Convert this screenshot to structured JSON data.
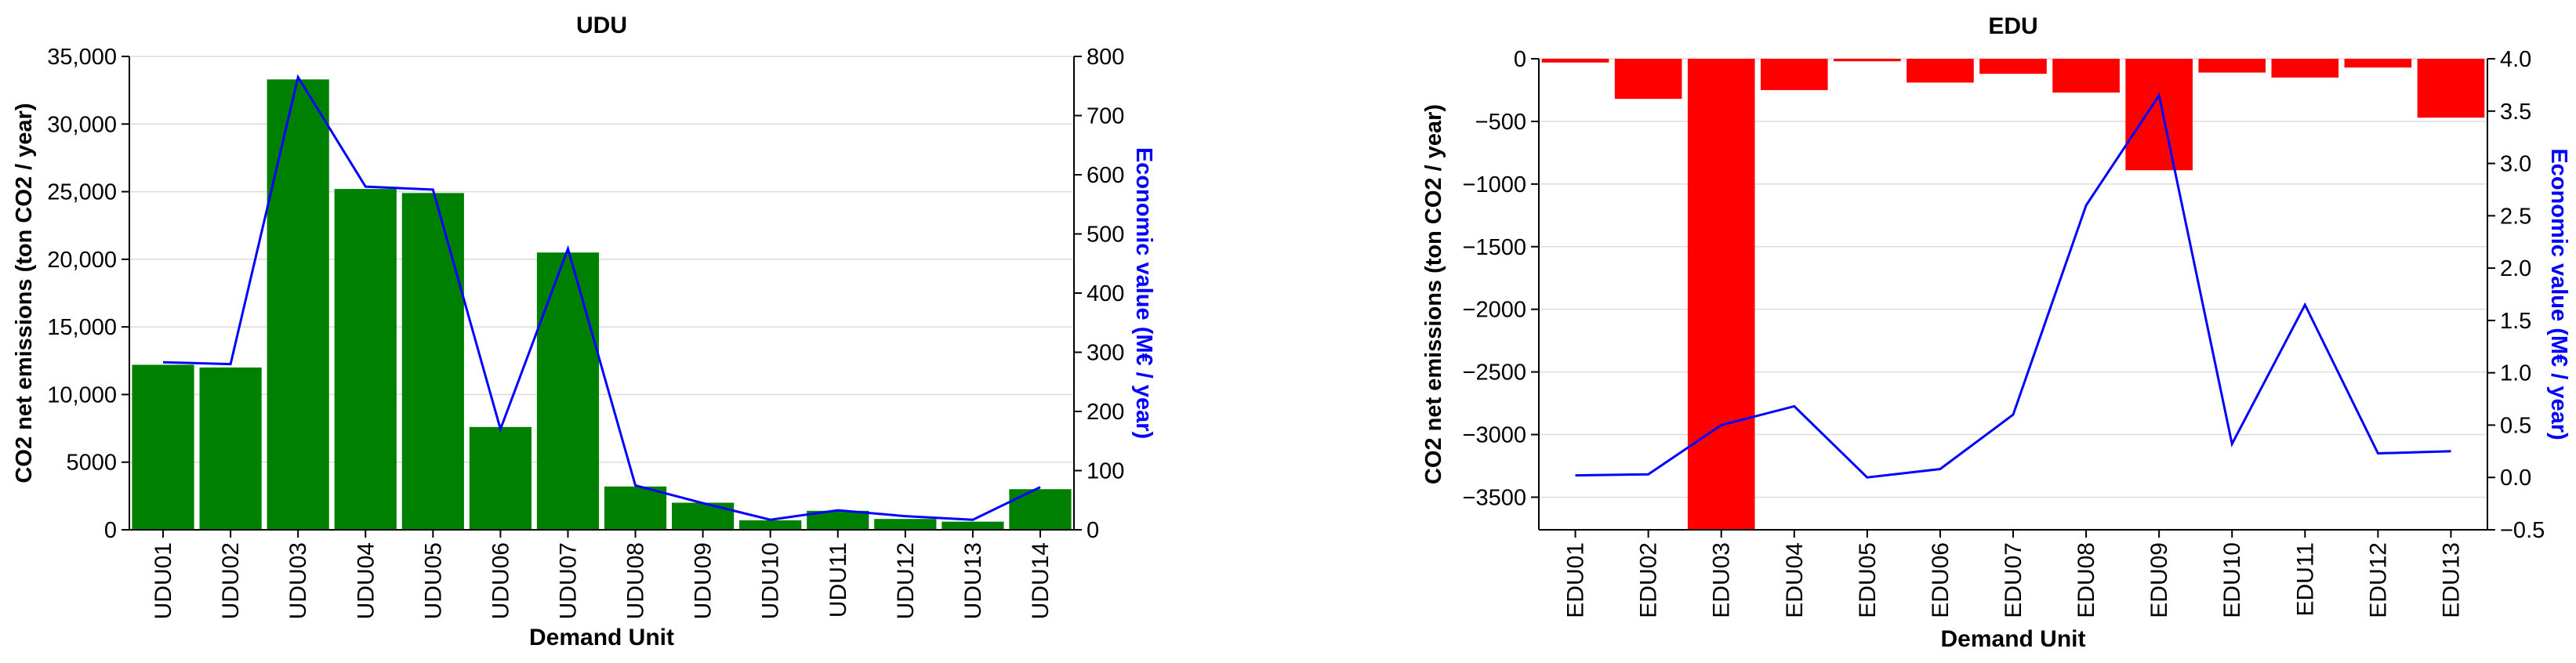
{
  "chart_data": [
    {
      "type": "bar",
      "title": "UDU",
      "xlabel": "Demand Unit",
      "ylabel": "CO2 net emissions (ton CO2 / year)",
      "ylabel_right": "Economic value (M€ / year)",
      "categories": [
        "UDU01",
        "UDU02",
        "UDU03",
        "UDU04",
        "UDU05",
        "UDU06",
        "UDU07",
        "UDU08",
        "UDU09",
        "UDU10",
        "UDU11",
        "UDU12",
        "UDU13",
        "UDU14"
      ],
      "values": [
        12200,
        12000,
        33300,
        25200,
        24900,
        7600,
        20500,
        3200,
        2000,
        700,
        1400,
        800,
        600,
        3000
      ],
      "line_values": [
        283,
        280,
        765,
        580,
        575,
        170,
        475,
        75,
        45,
        17,
        33,
        23,
        17,
        72
      ],
      "ylim": [
        0,
        35000
      ],
      "ylim_right": [
        0,
        800
      ],
      "yticks": [
        0,
        5000,
        10000,
        15000,
        20000,
        25000,
        30000,
        35000
      ],
      "ytick_labels": [
        "0",
        "5000",
        "10,000",
        "15,000",
        "20,000",
        "25,000",
        "30,000",
        "35,000"
      ],
      "yticks_right": [
        0,
        100,
        200,
        300,
        400,
        500,
        600,
        700,
        800
      ],
      "ytick_labels_right": [
        "0",
        "100",
        "200",
        "300",
        "400",
        "500",
        "600",
        "700",
        "800"
      ],
      "bar_color": "#008000",
      "line_color": "#0000ff",
      "grid": true
    },
    {
      "type": "bar",
      "title": "EDU",
      "xlabel": "Demand Unit",
      "ylabel": "CO2 net emissions (ton CO2 / year)",
      "ylabel_right": "Economic value (M€ / year)",
      "categories": [
        "EDU01",
        "EDU02",
        "EDU03",
        "EDU04",
        "EDU05",
        "EDU06",
        "EDU07",
        "EDU08",
        "EDU09",
        "EDU10",
        "EDU11",
        "EDU12",
        "EDU13"
      ],
      "values": [
        -30,
        -320,
        -3760,
        -250,
        -20,
        -190,
        -120,
        -270,
        -890,
        -110,
        -150,
        -70,
        -470
      ],
      "line_values": [
        0.02,
        0.03,
        0.5,
        0.68,
        0.0,
        0.08,
        0.6,
        2.6,
        3.65,
        0.32,
        1.65,
        0.23,
        0.25
      ],
      "ylim": [
        -3760,
        0
      ],
      "ylim_right": [
        -0.5,
        4.0
      ],
      "yticks": [
        -3500,
        -3000,
        -2500,
        -2000,
        -1500,
        -1000,
        -500,
        0
      ],
      "ytick_labels": [
        "−3500",
        "−3000",
        "−2500",
        "−2000",
        "−1500",
        "−1000",
        "−500",
        "0"
      ],
      "yticks_right": [
        -0.5,
        0.0,
        0.5,
        1.0,
        1.5,
        2.0,
        2.5,
        3.0,
        3.5,
        4.0
      ],
      "ytick_labels_right": [
        "−0.5",
        "0.0",
        "0.5",
        "1.0",
        "1.5",
        "2.0",
        "2.5",
        "3.0",
        "3.5",
        "4.0"
      ],
      "bar_color": "#ff0000",
      "line_color": "#0000ff",
      "grid": true
    }
  ]
}
